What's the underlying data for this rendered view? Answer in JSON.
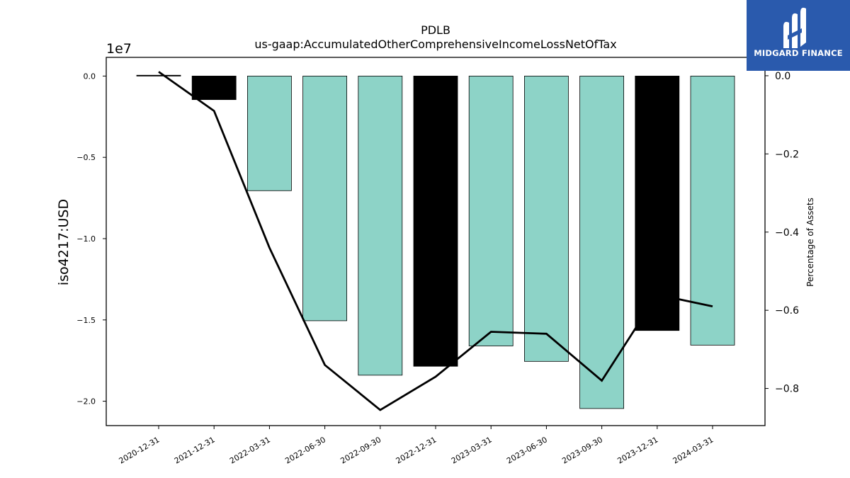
{
  "chart_data": {
    "type": "bar",
    "title": "PDLB",
    "subtitle": "us-gaap:AccumulatedOtherComprehensiveIncomeLossNetOfTax",
    "ylabel": "iso4217:USD",
    "y2label": "Percentage of Assets",
    "y_exponent_label": "1e7",
    "categories": [
      "2020-12-31",
      "2021-12-31",
      "2022-03-31",
      "2022-06-30",
      "2022-09-30",
      "2022-12-31",
      "2023-03-31",
      "2023-06-30",
      "2023-09-30",
      "2023-12-31",
      "2024-03-31"
    ],
    "bars": {
      "values": [
        50000,
        -1450000,
        -7050000,
        -15050000,
        -18400000,
        -17850000,
        -16600000,
        -17550000,
        -20450000,
        -15650000,
        -16550000
      ],
      "colors": [
        "#000000",
        "#000000",
        "#8dd3c7",
        "#8dd3c7",
        "#8dd3c7",
        "#000000",
        "#8dd3c7",
        "#8dd3c7",
        "#8dd3c7",
        "#000000",
        "#8dd3c7"
      ]
    },
    "line": {
      "values": [
        0.01,
        -0.09,
        -0.44,
        -0.74,
        -0.855,
        -0.77,
        -0.655,
        -0.66,
        -0.78,
        -0.56,
        -0.59
      ],
      "color": "#000000"
    },
    "ylim": [
      -21500000,
      1150000
    ],
    "y_ticks": [
      0.0,
      -0.5,
      -1.0,
      -1.5,
      -2.0
    ],
    "y_tick_scale": 10000000,
    "y2lim": [
      -0.895,
      0.047
    ],
    "y2_ticks": [
      0.0,
      -0.2,
      -0.4,
      -0.6,
      -0.8
    ]
  },
  "logo": {
    "text": "MIDGARD FINANCE"
  }
}
